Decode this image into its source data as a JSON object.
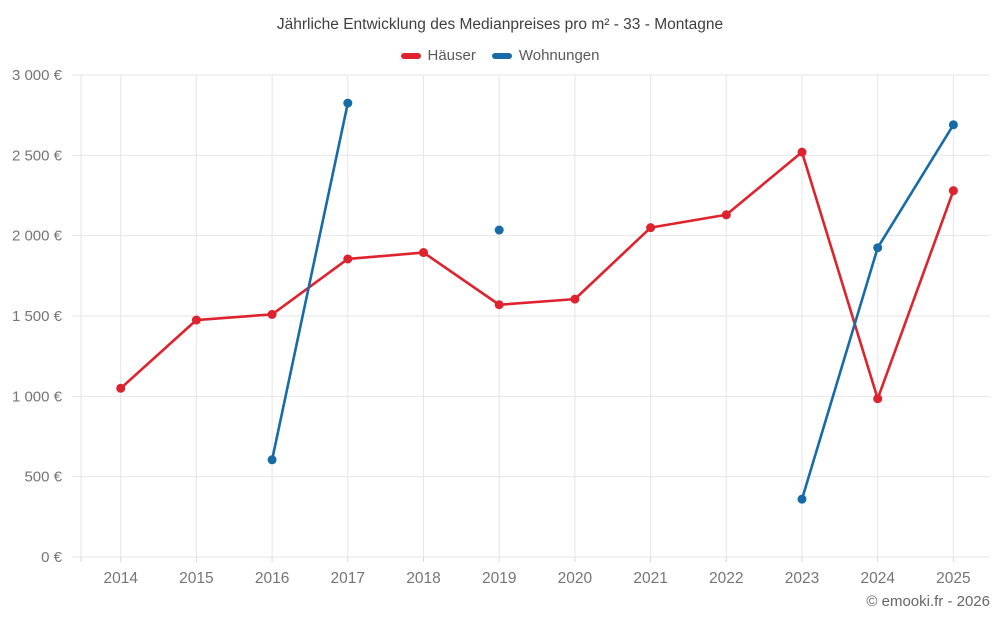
{
  "header": {
    "title": "Jährliche Entwicklung des Medianpreises pro m² - 33 - Montagne"
  },
  "footer": {
    "credit": "© emooki.fr - 2026"
  },
  "colors": {
    "hauser_red": "#df232e",
    "wohnungen_blue": "#176ba6",
    "grid": "#e6e6e6",
    "axis_tick": "#d9d9d9",
    "axis_label_text": "#757575",
    "title_text": "#3f3f3f",
    "legend_text": "#595959",
    "footer_text": "#666666",
    "background": "#ffffff"
  },
  "chart_data": {
    "type": "line",
    "title": "Jährliche Entwicklung des Medianpreises pro m² - 33 - Montagne",
    "xlabel": "",
    "ylabel": "",
    "categories": [
      2014,
      2015,
      2016,
      2017,
      2018,
      2019,
      2020,
      2021,
      2022,
      2023,
      2024,
      2025
    ],
    "series": [
      {
        "name": "Häuser",
        "color": "#df232e",
        "values": [
          1050,
          1475,
          1510,
          1855,
          1895,
          1570,
          1605,
          2050,
          2130,
          2520,
          985,
          2280
        ]
      },
      {
        "name": "Wohnungen",
        "color": "#176ba6",
        "values": [
          null,
          null,
          605,
          2825,
          null,
          2035,
          null,
          null,
          null,
          360,
          1925,
          2690
        ]
      }
    ],
    "ylim": [
      0,
      3000
    ],
    "y_ticks": [
      0,
      500,
      1000,
      1500,
      2000,
      2500,
      3000
    ],
    "y_tick_labels": [
      "0 €",
      "500 €",
      "1 000 €",
      "1 500 €",
      "2 000 €",
      "2 500 €",
      "3 000 €"
    ],
    "grid": true,
    "legend_position": "top",
    "currency": "€"
  }
}
